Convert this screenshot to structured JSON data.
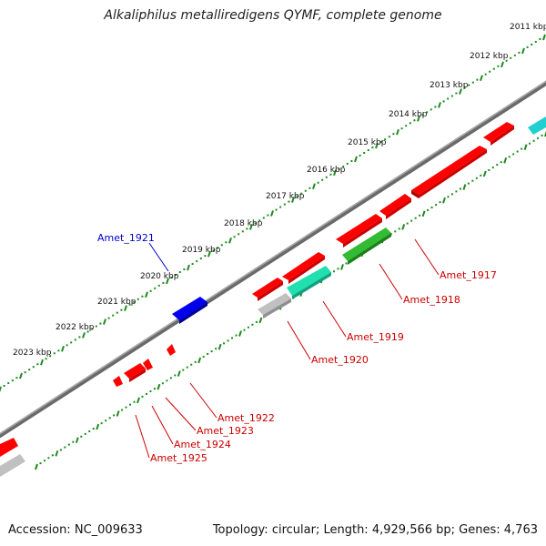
{
  "title": "Alkaliphilus metalliredigens QYMF, complete genome",
  "footer": {
    "accession_label": "Accession:",
    "accession": "NC_009633",
    "topology_label": "Topology:",
    "topology": "circular;",
    "length_label": "Length:",
    "length": "4,929,566 bp;",
    "genes_label": "Genes:",
    "genes": "4,763"
  },
  "colors": {
    "backbone": "#808080",
    "tick": "#1f8a1f",
    "red": "#ff0000",
    "blue": "#0000ee",
    "green": "#33bb33",
    "teal": "#20e0b0",
    "cyan": "#20d0d0",
    "grey": "#c0c0c0",
    "label_red": "#cc0000",
    "label_blue": "#0000cc"
  },
  "scale_labels": [
    "2011 kbp",
    "2012 kbp",
    "2013 kbp",
    "2014 kbp",
    "2015 kbp",
    "2016 kbp",
    "2017 kbp",
    "2018 kbp",
    "2019 kbp",
    "2020 kbp",
    "2021 kbp",
    "2022 kbp",
    "2023 kbp"
  ],
  "gene_labels": [
    {
      "name": "Amet_1917",
      "color_key": "label_red"
    },
    {
      "name": "Amet_1918",
      "color_key": "label_red"
    },
    {
      "name": "Amet_1919",
      "color_key": "label_red"
    },
    {
      "name": "Amet_1920",
      "color_key": "label_red"
    },
    {
      "name": "Amet_1921",
      "color_key": "label_blue"
    },
    {
      "name": "Amet_1922",
      "color_key": "label_red"
    },
    {
      "name": "Amet_1923",
      "color_key": "label_red"
    },
    {
      "name": "Amet_1924",
      "color_key": "label_red"
    },
    {
      "name": "Amet_1925",
      "color_key": "label_red"
    }
  ]
}
